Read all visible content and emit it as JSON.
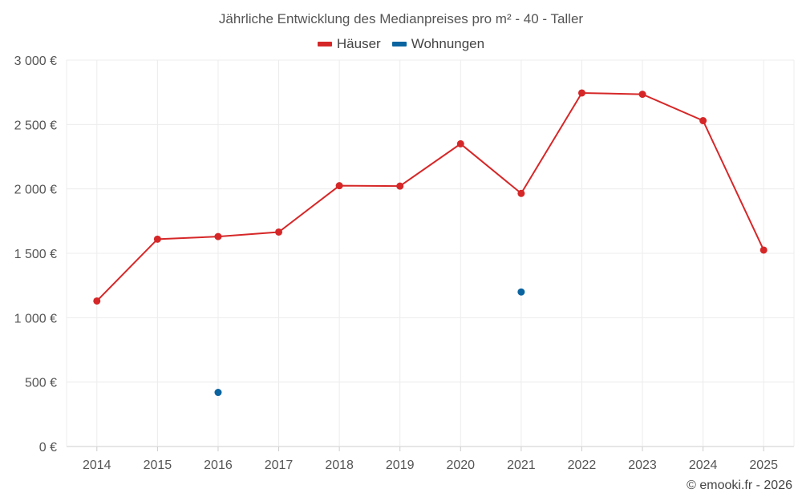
{
  "chart_data": {
    "type": "line",
    "title": "Jährliche Entwicklung des Medianpreises pro m² - 40 - Taller",
    "categories": [
      "2014",
      "2015",
      "2016",
      "2017",
      "2018",
      "2019",
      "2020",
      "2021",
      "2022",
      "2023",
      "2024",
      "2025"
    ],
    "ylim": [
      0,
      3000
    ],
    "yticks": [
      0,
      500,
      1000,
      1500,
      2000,
      2500,
      3000
    ],
    "ytick_labels": [
      "0 €",
      "500 €",
      "1 000 €",
      "1 500 €",
      "2 000 €",
      "2 500 €",
      "3 000 €"
    ],
    "grid": true,
    "legend_position": "top-center",
    "series": [
      {
        "name": "Häuser",
        "color": "#d62728",
        "line": true,
        "values": [
          1130,
          1610,
          1630,
          1665,
          2025,
          2022,
          2350,
          1965,
          2745,
          2735,
          2530,
          1525
        ]
      },
      {
        "name": "Wohnungen",
        "color": "#0a64a0",
        "line": false,
        "values": [
          null,
          null,
          420,
          null,
          null,
          null,
          null,
          1200,
          null,
          null,
          null,
          null
        ]
      }
    ]
  },
  "credit": "© emooki.fr - 2026"
}
